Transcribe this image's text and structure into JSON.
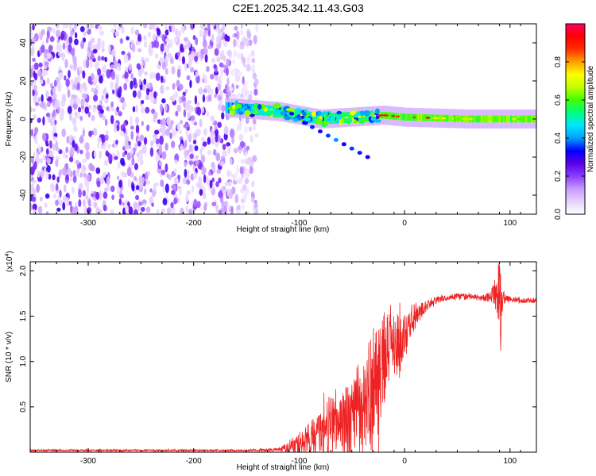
{
  "figure": {
    "title": "C2E1.2025.342.11.43.G03"
  },
  "chart_data": [
    {
      "type": "heatmap",
      "xlabel": "Height of straight line (km)",
      "ylabel": "Frequency (Hz)",
      "xlim": [
        -355,
        125
      ],
      "ylim": [
        -50,
        50
      ],
      "xticks": [
        -300,
        -200,
        -100,
        0,
        100
      ],
      "yticks": [
        -40,
        -20,
        0,
        20,
        40
      ],
      "colorbar": {
        "label": "Normalized spectral amplitude",
        "range": [
          0.0,
          1.0
        ],
        "ticks": [
          0.0,
          0.2,
          0.4,
          0.6,
          0.8
        ],
        "tick_labels": [
          "0.0",
          "0.2",
          "0.4",
          "0.6",
          "0.8"
        ],
        "colormap": [
          "#ffffff",
          "#e6d2ff",
          "#c89bff",
          "#8a3dff",
          "#5a00e6",
          "#0000ff",
          "#00a0ff",
          "#00e5ff",
          "#00ff80",
          "#40ff00",
          "#c0ff00",
          "#ffff00",
          "#ffa000",
          "#ff3000",
          "#ff0000",
          "#ff0060"
        ]
      },
      "regions": [
        {
          "name": "noise",
          "x_range": [
            -355,
            -140
          ],
          "f_range": [
            -50,
            50
          ],
          "amplitude_range": [
            0.05,
            0.3
          ]
        },
        {
          "name": "signal",
          "x_range": [
            -170,
            125
          ],
          "center_freq": [
            [
              -170,
              6
            ],
            [
              -120,
              4
            ],
            [
              -80,
              0
            ],
            [
              -50,
              1
            ],
            [
              -20,
              2
            ],
            [
              0,
              1
            ],
            [
              60,
              0
            ],
            [
              125,
              0
            ]
          ],
          "peak_amplitude": 0.9
        },
        {
          "name": "branch",
          "x_range": [
            -95,
            -35
          ],
          "f_range": [
            -2,
            -20
          ],
          "amplitude_range": [
            0.3,
            0.4
          ]
        }
      ]
    },
    {
      "type": "line",
      "xlabel": "Height of straight line (km)",
      "ylabel": "SNR (10 * v/v)",
      "y_multiplier": "(x10",
      "y_exponent": "4",
      "xlim": [
        -355,
        125
      ],
      "ylim": [
        0,
        2.1
      ],
      "xticks": [
        -300,
        -200,
        -100,
        0,
        100
      ],
      "yticks": [
        0.5,
        1.0,
        1.5,
        2.0
      ],
      "ytick_labels": [
        "0.5",
        "1.0",
        "1.5",
        "2.0"
      ],
      "color": "#ee2222",
      "series": [
        {
          "x": [
            -355,
            -300,
            -250,
            -200,
            -150,
            -120,
            -105,
            -90,
            -80,
            -70,
            -60,
            -50,
            -45,
            -40,
            -35,
            -30,
            -25,
            -22,
            -20,
            -18,
            -15,
            -12,
            -10,
            -5,
            0,
            5,
            10,
            15,
            20,
            25,
            30,
            40,
            50,
            60,
            70,
            80,
            85,
            88,
            90,
            92,
            95,
            100,
            110,
            120,
            125
          ],
          "y": [
            0.02,
            0.02,
            0.02,
            0.02,
            0.02,
            0.03,
            0.06,
            0.15,
            0.22,
            0.3,
            0.33,
            0.35,
            0.4,
            0.46,
            0.55,
            0.7,
            0.85,
            0.95,
            1.0,
            1.05,
            1.1,
            1.15,
            1.2,
            1.22,
            1.3,
            1.4,
            1.5,
            1.55,
            1.6,
            1.65,
            1.68,
            1.7,
            1.72,
            1.72,
            1.7,
            1.71,
            1.73,
            1.8,
            1.7,
            1.7,
            1.7,
            1.69,
            1.68,
            1.67,
            1.68
          ],
          "spread": [
            0.01,
            0.01,
            0.01,
            0.01,
            0.01,
            0.02,
            0.08,
            0.18,
            0.25,
            0.35,
            0.38,
            0.4,
            0.45,
            0.5,
            0.55,
            0.7,
            0.65,
            0.6,
            0.55,
            0.5,
            0.45,
            0.4,
            0.38,
            0.3,
            0.25,
            0.2,
            0.15,
            0.1,
            0.06,
            0.05,
            0.04,
            0.03,
            0.03,
            0.03,
            0.03,
            0.05,
            0.15,
            0.3,
            0.35,
            0.2,
            0.05,
            0.03,
            0.03,
            0.03,
            0.03
          ]
        }
      ]
    }
  ]
}
